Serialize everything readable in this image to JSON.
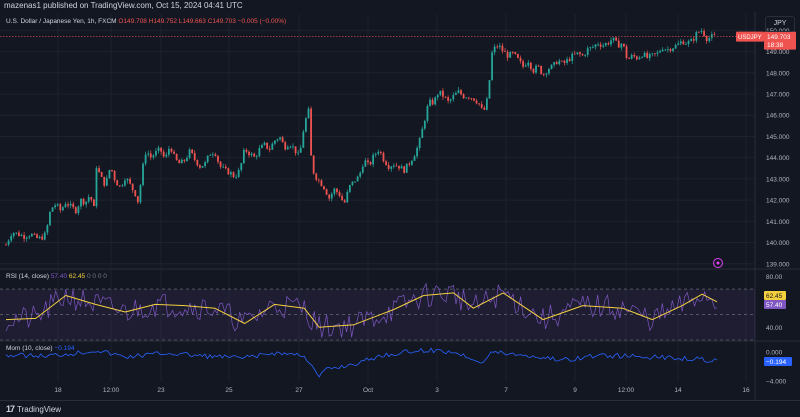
{
  "header": {
    "publisher_line": "mazenas1 published on TradingView.com, Oct 15, 2024 04:41 UTC"
  },
  "main_pane": {
    "title": "U.S. Dollar / Japanese Yen, 1h, FXCM",
    "ohlc": {
      "o": "O149.708",
      "h": "H149.752",
      "l": "L149.663",
      "c": "C149.703",
      "chg": "−0.005 (−0.00%)"
    },
    "currency_label": "JPY",
    "price_tag": {
      "symbol": "USDJPY",
      "price": "149.703",
      "countdown": "18:38"
    }
  },
  "rsi_pane": {
    "legend_label": "RSI (14, close)",
    "legend_v1": "57.40",
    "legend_v2": "62.45",
    "legend_rest": "0 0 0 0",
    "tag_ma": "62.45",
    "tag_rsi": "57.40"
  },
  "mom_pane": {
    "legend_label": "Mom (10, close)",
    "legend_value": "−0.194",
    "tag": "−0.194"
  },
  "footer": {
    "brand": "TradingView"
  },
  "colors": {
    "up": "#26a69a",
    "down": "#ef5350",
    "rsi": "#7e57c2",
    "rsi_ma": "#f4d03f",
    "mom": "#2962ff"
  },
  "chart_data": [
    {
      "type": "candlestick",
      "symbol": "USDJPY",
      "interval": "1h",
      "ylim": [
        138.8,
        150.3
      ],
      "y_ticks": [
        "150.000",
        "149.000",
        "148.000",
        "147.000",
        "146.000",
        "145.000",
        "144.000",
        "143.000",
        "142.000",
        "141.000",
        "140.000",
        "139.000"
      ],
      "x_ticks": [
        "18",
        "12:00",
        "23",
        "25",
        "27",
        "Oct",
        "3",
        "7",
        "9",
        "12:00",
        "14",
        "16"
      ],
      "close_path": [
        [
          0,
          139.9
        ],
        [
          6,
          140.5
        ],
        [
          12,
          140.4
        ],
        [
          18,
          140.3
        ],
        [
          25,
          140.4
        ],
        [
          30,
          140.2
        ],
        [
          35,
          140.2
        ],
        [
          40,
          140.4
        ],
        [
          45,
          141.6
        ],
        [
          50,
          141.8
        ],
        [
          55,
          141.5
        ],
        [
          60,
          141.9
        ],
        [
          65,
          141.7
        ],
        [
          70,
          141.5
        ],
        [
          75,
          142.0
        ],
        [
          80,
          141.9
        ],
        [
          85,
          142.3
        ],
        [
          88,
          141.3
        ],
        [
          91,
          143.6
        ],
        [
          95,
          143.1
        ],
        [
          100,
          142.7
        ],
        [
          105,
          143.6
        ],
        [
          110,
          142.9
        ],
        [
          115,
          142.6
        ],
        [
          120,
          143.1
        ],
        [
          125,
          142.7
        ],
        [
          130,
          142.3
        ],
        [
          133,
          141.9
        ],
        [
          137,
          143.4
        ],
        [
          141,
          144.4
        ],
        [
          145,
          144.0
        ],
        [
          150,
          144.2
        ],
        [
          155,
          144.4
        ],
        [
          160,
          143.9
        ],
        [
          165,
          144.6
        ],
        [
          170,
          143.9
        ],
        [
          175,
          143.7
        ],
        [
          180,
          143.9
        ],
        [
          185,
          144.3
        ],
        [
          190,
          143.9
        ],
        [
          195,
          143.6
        ],
        [
          200,
          143.7
        ],
        [
          205,
          144.2
        ],
        [
          210,
          144.3
        ],
        [
          215,
          143.6
        ],
        [
          220,
          143.4
        ],
        [
          225,
          143.3
        ],
        [
          230,
          143.1
        ],
        [
          235,
          143.4
        ],
        [
          240,
          144.4
        ],
        [
          245,
          144.2
        ],
        [
          250,
          144.0
        ],
        [
          255,
          144.4
        ],
        [
          260,
          144.6
        ],
        [
          265,
          144.4
        ],
        [
          270,
          144.8
        ],
        [
          275,
          145.0
        ],
        [
          280,
          144.5
        ],
        [
          285,
          144.7
        ],
        [
          290,
          144.4
        ],
        [
          295,
          144.0
        ],
        [
          300,
          145.6
        ],
        [
          305,
          146.3
        ],
        [
          307,
          143.8
        ],
        [
          310,
          143.2
        ],
        [
          315,
          142.9
        ],
        [
          320,
          142.6
        ],
        [
          325,
          142.1
        ],
        [
          330,
          142.5
        ],
        [
          335,
          142.3
        ],
        [
          340,
          141.8
        ],
        [
          345,
          142.6
        ],
        [
          350,
          142.9
        ],
        [
          355,
          143.1
        ],
        [
          360,
          143.9
        ],
        [
          365,
          143.6
        ],
        [
          370,
          144.1
        ],
        [
          375,
          144.4
        ],
        [
          380,
          143.9
        ],
        [
          385,
          143.6
        ],
        [
          390,
          143.7
        ],
        [
          395,
          143.6
        ],
        [
          400,
          143.4
        ],
        [
          405,
          143.7
        ],
        [
          410,
          144.1
        ],
        [
          415,
          144.6
        ],
        [
          420,
          145.6
        ],
        [
          425,
          146.6
        ],
        [
          430,
          146.6
        ],
        [
          435,
          147.1
        ],
        [
          440,
          146.9
        ],
        [
          445,
          146.6
        ],
        [
          450,
          146.9
        ],
        [
          455,
          147.1
        ],
        [
          460,
          146.9
        ],
        [
          465,
          146.9
        ],
        [
          470,
          146.8
        ],
        [
          475,
          146.6
        ],
        [
          480,
          146.1
        ],
        [
          485,
          146.9
        ],
        [
          488,
          148.8
        ],
        [
          490,
          149.1
        ],
        [
          495,
          149.3
        ],
        [
          500,
          149.0
        ],
        [
          505,
          148.8
        ],
        [
          510,
          148.9
        ],
        [
          515,
          148.6
        ],
        [
          520,
          148.3
        ],
        [
          525,
          148.6
        ],
        [
          530,
          148.1
        ],
        [
          535,
          148.3
        ],
        [
          540,
          147.9
        ],
        [
          545,
          148.2
        ],
        [
          550,
          148.3
        ],
        [
          555,
          148.6
        ],
        [
          560,
          148.4
        ],
        [
          565,
          148.6
        ],
        [
          570,
          148.8
        ],
        [
          575,
          148.9
        ],
        [
          580,
          148.8
        ],
        [
          585,
          149.1
        ],
        [
          590,
          149.2
        ],
        [
          595,
          149.4
        ],
        [
          600,
          149.3
        ],
        [
          605,
          149.4
        ],
        [
          610,
          149.6
        ],
        [
          615,
          149.3
        ],
        [
          620,
          149.4
        ],
        [
          625,
          148.6
        ],
        [
          630,
          148.8
        ],
        [
          635,
          148.7
        ],
        [
          640,
          148.9
        ],
        [
          645,
          148.7
        ],
        [
          650,
          148.8
        ],
        [
          655,
          148.9
        ],
        [
          660,
          149.2
        ],
        [
          665,
          149.1
        ],
        [
          670,
          149.2
        ],
        [
          675,
          149.3
        ],
        [
          680,
          149.5
        ],
        [
          685,
          149.4
        ],
        [
          690,
          149.5
        ],
        [
          695,
          149.9
        ],
        [
          700,
          150.0
        ],
        [
          705,
          149.6
        ],
        [
          710,
          149.7
        ],
        [
          715,
          149.7
        ]
      ]
    },
    {
      "type": "line",
      "name": "RSI (14, close)",
      "ylim": [
        30,
        85
      ],
      "y_ticks": [
        "80.00",
        "40.00"
      ],
      "band_levels": [
        70,
        50,
        30
      ],
      "rsi_ma_path": [
        [
          0,
          46
        ],
        [
          30,
          47
        ],
        [
          60,
          65
        ],
        [
          90,
          58
        ],
        [
          120,
          52
        ],
        [
          150,
          58
        ],
        [
          180,
          57
        ],
        [
          210,
          55
        ],
        [
          240,
          43
        ],
        [
          270,
          58
        ],
        [
          300,
          55
        ],
        [
          315,
          40
        ],
        [
          350,
          42
        ],
        [
          390,
          54
        ],
        [
          420,
          65
        ],
        [
          450,
          67
        ],
        [
          470,
          55
        ],
        [
          500,
          67
        ],
        [
          540,
          46
        ],
        [
          580,
          57
        ],
        [
          620,
          55
        ],
        [
          650,
          46
        ],
        [
          680,
          57
        ],
        [
          700,
          66
        ],
        [
          715,
          60
        ]
      ]
    },
    {
      "type": "line",
      "name": "Mom (10, close)",
      "y_ticks": [
        "0.000",
        "−4.000"
      ]
    }
  ]
}
